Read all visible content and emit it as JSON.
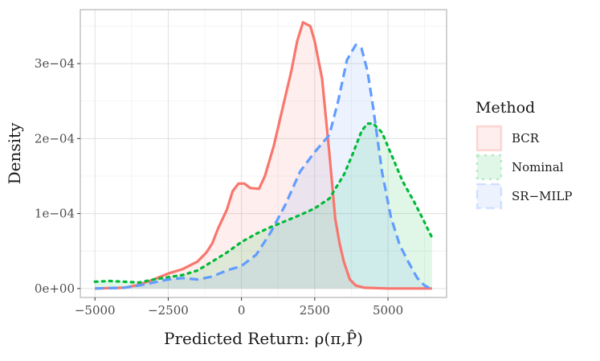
{
  "chart_data": {
    "type": "area",
    "title": "",
    "xlabel": "Predicted Return: ρ(π,P̂)",
    "ylabel": "Density",
    "xlim": [
      -5500,
      7000
    ],
    "ylim": [
      -1.2e-05,
      0.000372
    ],
    "x_ticks": [
      {
        "value": -5000,
        "label": "−5000"
      },
      {
        "value": -2500,
        "label": "−2500"
      },
      {
        "value": 0,
        "label": "0"
      },
      {
        "value": 2500,
        "label": "2500"
      },
      {
        "value": 5000,
        "label": "5000"
      }
    ],
    "y_ticks": [
      {
        "value": 0,
        "label": "0e+00"
      },
      {
        "value": 0.0001,
        "label": "1e−04"
      },
      {
        "value": 0.0002,
        "label": "2e−04"
      },
      {
        "value": 0.0003,
        "label": "3e−04"
      }
    ],
    "grid": true,
    "legend": {
      "title": "Method",
      "position": "right"
    },
    "series": [
      {
        "name": "BCR",
        "color": "#F8766D",
        "dash": "solid",
        "points": [
          [
            -5000,
            0.0
          ],
          [
            -4000,
            1e-06
          ],
          [
            -3500,
            5e-06
          ],
          [
            -3000,
            1.2e-05
          ],
          [
            -2500,
            2e-05
          ],
          [
            -2000,
            2.6e-05
          ],
          [
            -1500,
            3.6e-05
          ],
          [
            -1200,
            4.8e-05
          ],
          [
            -1000,
            6e-05
          ],
          [
            -800,
            8e-05
          ],
          [
            -500,
            0.000105
          ],
          [
            -300,
            0.00013
          ],
          [
            -100,
            0.00014
          ],
          [
            100,
            0.00014
          ],
          [
            300,
            0.000134
          ],
          [
            600,
            0.000133
          ],
          [
            800,
            0.00015
          ],
          [
            1100,
            0.00019
          ],
          [
            1400,
            0.00024
          ],
          [
            1700,
            0.00029
          ],
          [
            1900,
            0.00033
          ],
          [
            2100,
            0.000355
          ],
          [
            2350,
            0.00035
          ],
          [
            2500,
            0.00033
          ],
          [
            2750,
            0.00028
          ],
          [
            3000,
            0.00018
          ],
          [
            3200,
            9.3e-05
          ],
          [
            3350,
            6e-05
          ],
          [
            3500,
            3.5e-05
          ],
          [
            3700,
            1.2e-05
          ],
          [
            3900,
            4e-06
          ],
          [
            4200,
            1e-06
          ],
          [
            5000,
            0.0
          ],
          [
            6500,
            0.0
          ]
        ]
      },
      {
        "name": "Nominal",
        "color": "#00BA38",
        "dash": "dotted",
        "points": [
          [
            -5000,
            9e-06
          ],
          [
            -4500,
            1e-05
          ],
          [
            -4000,
            9e-06
          ],
          [
            -3500,
            8e-06
          ],
          [
            -3000,
            1.2e-05
          ],
          [
            -2500,
            1.5e-05
          ],
          [
            -2000,
            1.8e-05
          ],
          [
            -1500,
            2.4e-05
          ],
          [
            -1000,
            3.6e-05
          ],
          [
            -500,
            4.8e-05
          ],
          [
            0,
            6.2e-05
          ],
          [
            500,
            7.3e-05
          ],
          [
            1000,
            8.2e-05
          ],
          [
            1500,
            9e-05
          ],
          [
            2000,
            9.8e-05
          ],
          [
            2500,
            0.000107
          ],
          [
            3000,
            0.00012
          ],
          [
            3500,
            0.000152
          ],
          [
            3800,
            0.00018
          ],
          [
            4100,
            0.00021
          ],
          [
            4300,
            0.00022
          ],
          [
            4500,
            0.00022
          ],
          [
            4800,
            0.000208
          ],
          [
            5100,
            0.00018
          ],
          [
            5500,
            0.000143
          ],
          [
            5900,
            0.000115
          ],
          [
            6200,
            9.2e-05
          ],
          [
            6500,
            6.8e-05
          ]
        ]
      },
      {
        "name": "SR−MILP",
        "color": "#619CFF",
        "dash": "dashed",
        "points": [
          [
            -5000,
            0.0
          ],
          [
            -4000,
            1e-06
          ],
          [
            -3500,
            4e-06
          ],
          [
            -3000,
            8e-06
          ],
          [
            -2500,
            1.2e-05
          ],
          [
            -2000,
            1.4e-05
          ],
          [
            -1500,
            1.2e-05
          ],
          [
            -1000,
            1.6e-05
          ],
          [
            -500,
            2.4e-05
          ],
          [
            0,
            3e-05
          ],
          [
            500,
            4.5e-05
          ],
          [
            1000,
            7.5e-05
          ],
          [
            1500,
            0.000112
          ],
          [
            2000,
            0.000156
          ],
          [
            2500,
            0.000182
          ],
          [
            3000,
            0.000205
          ],
          [
            3300,
            0.00025
          ],
          [
            3600,
            0.000305
          ],
          [
            3900,
            0.000325
          ],
          [
            4100,
            0.00032
          ],
          [
            4300,
            0.00029
          ],
          [
            4500,
            0.00024
          ],
          [
            4800,
            0.000155
          ],
          [
            5100,
            9.5e-05
          ],
          [
            5400,
            5.8e-05
          ],
          [
            5700,
            3.5e-05
          ],
          [
            6000,
            1.4e-05
          ],
          [
            6250,
            4e-06
          ],
          [
            6400,
            1e-06
          ]
        ]
      }
    ]
  }
}
